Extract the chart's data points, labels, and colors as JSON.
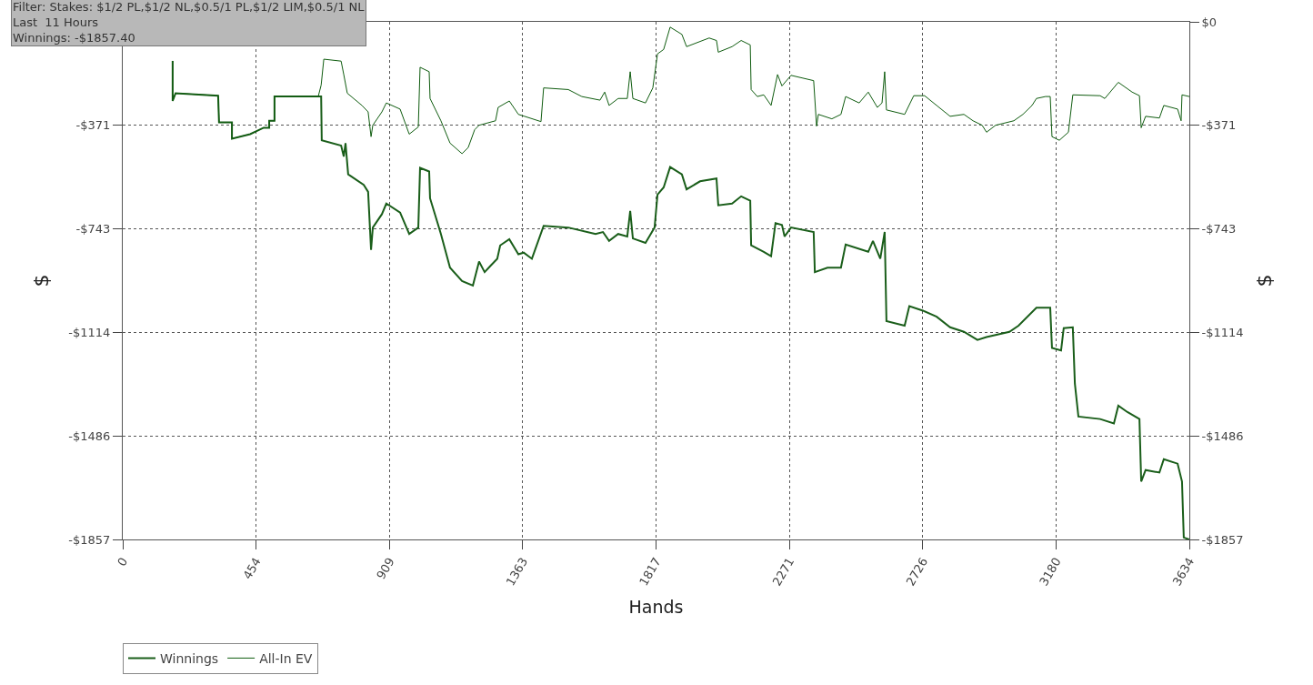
{
  "chart_data": {
    "type": "line",
    "xlabel": "Hands",
    "ylabel": "$",
    "y2label": "$",
    "annotations": [
      "Filter: Stakes: $1/2 PL,$1/2 NL,$0.5/1 PL,$1/2 LIM,$0.5/1 NL",
      "Last  11 Hours",
      "Winnings: -$1857.40"
    ],
    "xlim": [
      0,
      3634
    ],
    "xticks": [
      0,
      454,
      909,
      1363,
      1817,
      2271,
      2726,
      3180,
      3634
    ],
    "ylim": [
      -1857,
      0
    ],
    "yticks": [
      {
        "value": -371,
        "label": "-$371"
      },
      {
        "value": -743,
        "label": "-$743"
      },
      {
        "value": -1114,
        "label": "-$1114"
      },
      {
        "value": -1486,
        "label": "-$1486"
      },
      {
        "value": -1857,
        "label": "-$1857"
      }
    ],
    "y2lim": [
      -1857,
      0
    ],
    "y2ticks": [
      {
        "value": 0,
        "label": "$0"
      },
      {
        "value": -371,
        "label": "-$371"
      },
      {
        "value": -743,
        "label": "-$743"
      },
      {
        "value": -1114,
        "label": "-$1114"
      },
      {
        "value": -1486,
        "label": "-$1486"
      },
      {
        "value": -1857,
        "label": "-$1857"
      }
    ],
    "grid": true,
    "legend": "bottom left",
    "marker": "none",
    "line_style": "solid",
    "series": [
      {
        "name": "Winnings",
        "color": "#1a5e1a",
        "x": [
          170,
          170,
          180,
          325,
          328,
          372,
          372,
          434,
          480,
          499,
          499,
          517,
          517,
          666,
          676,
          678,
          744,
          753,
          759,
          768,
          821,
          836,
          846,
          852,
          883,
          898,
          945,
          976,
          1007,
          1013,
          1044,
          1047,
          1084,
          1115,
          1156,
          1193,
          1214,
          1233,
          1255,
          1276,
          1286,
          1317,
          1348,
          1366,
          1394,
          1434,
          1518,
          1611,
          1636,
          1657,
          1688,
          1719,
          1729,
          1738,
          1781,
          1812,
          1822,
          1843,
          1865,
          1905,
          1921,
          1967,
          2023,
          2029,
          2076,
          2107,
          2138,
          2141,
          2184,
          2209,
          2224,
          2246,
          2255,
          2277,
          2354,
          2358,
          2401,
          2447,
          2463,
          2540,
          2556,
          2581,
          2596,
          2602,
          2664,
          2680,
          2726,
          2773,
          2819,
          2866,
          2912,
          2943,
          3021,
          3052,
          3113,
          3160,
          3166,
          3197,
          3206,
          3237,
          3244,
          3256,
          3330,
          3377,
          3392,
          3423,
          3464,
          3470,
          3485,
          3532,
          3547,
          3594,
          3609,
          3615,
          3634
        ],
        "values": [
          -140,
          -284,
          -256,
          -265,
          -361,
          -361,
          -419,
          -403,
          -380,
          -380,
          -355,
          -355,
          -268,
          -268,
          -268,
          -425,
          -444,
          -483,
          -435,
          -547,
          -585,
          -610,
          -818,
          -738,
          -690,
          -652,
          -684,
          -761,
          -738,
          -524,
          -537,
          -633,
          -761,
          -882,
          -930,
          -946,
          -860,
          -898,
          -873,
          -850,
          -802,
          -780,
          -834,
          -828,
          -850,
          -732,
          -738,
          -761,
          -754,
          -786,
          -761,
          -770,
          -678,
          -777,
          -793,
          -738,
          -620,
          -594,
          -521,
          -547,
          -601,
          -572,
          -562,
          -658,
          -652,
          -626,
          -642,
          -802,
          -825,
          -841,
          -722,
          -729,
          -770,
          -738,
          -754,
          -898,
          -882,
          -882,
          -799,
          -825,
          -786,
          -850,
          -754,
          -1074,
          -1090,
          -1020,
          -1036,
          -1058,
          -1096,
          -1112,
          -1141,
          -1131,
          -1112,
          -1090,
          -1026,
          -1026,
          -1170,
          -1179,
          -1099,
          -1096,
          -1298,
          -1416,
          -1425,
          -1441,
          -1377,
          -1400,
          -1425,
          -1649,
          -1608,
          -1617,
          -1569,
          -1585,
          -1649,
          -1850,
          -1857
        ]
      },
      {
        "name": "All-In EV",
        "color": "#0f5c0f",
        "x": [
          170,
          170,
          180,
          325,
          328,
          372,
          372,
          434,
          480,
          499,
          499,
          517,
          517,
          666,
          676,
          685,
          744,
          753,
          765,
          815,
          836,
          846,
          852,
          883,
          898,
          945,
          976,
          1007,
          1013,
          1044,
          1047,
          1084,
          1115,
          1156,
          1177,
          1199,
          1214,
          1270,
          1279,
          1317,
          1348,
          1369,
          1425,
          1434,
          1518,
          1564,
          1626,
          1642,
          1657,
          1688,
          1719,
          1729,
          1738,
          1781,
          1806,
          1822,
          1843,
          1865,
          1905,
          1921,
          1998,
          2023,
          2029,
          2076,
          2107,
          2138,
          2141,
          2162,
          2184,
          2209,
          2231,
          2246,
          2277,
          2354,
          2364,
          2370,
          2416,
          2447,
          2463,
          2509,
          2540,
          2571,
          2587,
          2596,
          2602,
          2664,
          2695,
          2732,
          2773,
          2819,
          2866,
          2897,
          2928,
          2943,
          2974,
          3036,
          3067,
          3098,
          3113,
          3144,
          3160,
          3166,
          3191,
          3222,
          3237,
          3330,
          3346,
          3392,
          3439,
          3464,
          3470,
          3485,
          3532,
          3547,
          3594,
          3606,
          3609,
          3634
        ],
        "values": [
          -140,
          -284,
          -256,
          -265,
          -361,
          -361,
          -419,
          -403,
          -380,
          -380,
          -355,
          -355,
          -268,
          -268,
          -227,
          -134,
          -141,
          -189,
          -256,
          -300,
          -323,
          -412,
          -371,
          -323,
          -291,
          -313,
          -403,
          -377,
          -163,
          -179,
          -275,
          -355,
          -435,
          -473,
          -451,
          -387,
          -371,
          -355,
          -307,
          -284,
          -332,
          -339,
          -358,
          -237,
          -243,
          -268,
          -281,
          -252,
          -300,
          -275,
          -275,
          -179,
          -275,
          -291,
          -237,
          -115,
          -99,
          -19,
          -45,
          -89,
          -58,
          -67,
          -109,
          -89,
          -67,
          -83,
          -243,
          -268,
          -262,
          -300,
          -189,
          -230,
          -192,
          -211,
          -374,
          -332,
          -348,
          -332,
          -268,
          -291,
          -252,
          -307,
          -291,
          -179,
          -316,
          -332,
          -265,
          -265,
          -300,
          -339,
          -332,
          -355,
          -371,
          -396,
          -371,
          -355,
          -332,
          -300,
          -275,
          -268,
          -268,
          -412,
          -425,
          -396,
          -262,
          -265,
          -275,
          -217,
          -252,
          -265,
          -380,
          -339,
          -345,
          -300,
          -313,
          -355,
          -262,
          -268
        ]
      }
    ]
  }
}
